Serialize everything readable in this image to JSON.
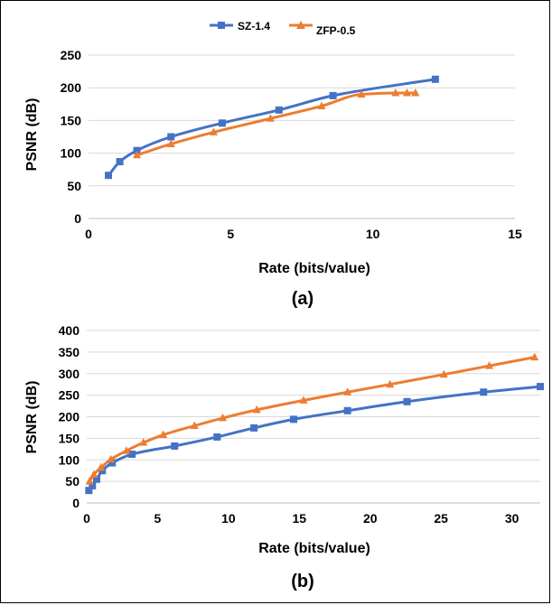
{
  "legend": {
    "items": [
      {
        "name": "SZ-1.4",
        "color": "#4472C4",
        "marker": "square"
      },
      {
        "name": "ZFP-0.5",
        "color": "#ED7D31",
        "marker": "triangle"
      }
    ]
  },
  "chart_data": [
    {
      "type": "line",
      "panel_label": "(a)",
      "xlabel": "Rate (bits/value)",
      "ylabel": "PSNR (dB)",
      "xlim": [
        0,
        15
      ],
      "ylim": [
        0,
        250
      ],
      "xticks": [
        0,
        5,
        10,
        15
      ],
      "yticks": [
        0,
        50,
        100,
        150,
        200,
        250
      ],
      "grid": "horizontal",
      "series": [
        {
          "name": "SZ-1.4",
          "color": "#4472C4",
          "marker": "square",
          "x": [
            0.7,
            1.1,
            1.7,
            2.9,
            4.7,
            6.7,
            8.6,
            12.2
          ],
          "y": [
            66,
            87,
            104,
            125,
            146,
            166,
            188,
            213
          ]
        },
        {
          "name": "ZFP-0.5",
          "color": "#ED7D31",
          "marker": "triangle",
          "x": [
            1.7,
            2.9,
            4.4,
            6.4,
            8.2,
            9.6,
            10.8,
            11.2,
            11.5
          ],
          "y": [
            97,
            114,
            132,
            153,
            172,
            190,
            192,
            192,
            192
          ]
        }
      ]
    },
    {
      "type": "line",
      "panel_label": "(b)",
      "xlabel": "Rate (bits/value)",
      "ylabel": "PSNR (dB)",
      "xlim": [
        0,
        32
      ],
      "ylim": [
        0,
        400
      ],
      "xticks": [
        0,
        5,
        10,
        15,
        20,
        25,
        30
      ],
      "yticks": [
        0,
        50,
        100,
        150,
        200,
        250,
        300,
        350,
        400
      ],
      "grid": "horizontal",
      "series": [
        {
          "name": "SZ-1.4",
          "color": "#4472C4",
          "marker": "square",
          "x": [
            0.15,
            0.4,
            0.7,
            1.1,
            1.8,
            3.2,
            6.2,
            9.2,
            11.8,
            14.6,
            18.4,
            22.6,
            28.0,
            32.0
          ],
          "y": [
            29,
            40,
            55,
            75,
            93,
            113,
            132,
            153,
            174,
            194,
            214,
            235,
            257,
            270
          ]
        },
        {
          "name": "ZFP-0.5",
          "color": "#ED7D31",
          "marker": "triangle",
          "x": [
            0.2,
            0.5,
            1.0,
            1.7,
            2.8,
            4.0,
            5.4,
            7.6,
            9.6,
            12.0,
            15.3,
            18.4,
            21.4,
            25.2,
            28.4,
            31.6
          ],
          "y": [
            50,
            66,
            82,
            101,
            121,
            140,
            158,
            179,
            197,
            216,
            238,
            257,
            275,
            298,
            318,
            338
          ]
        }
      ]
    }
  ]
}
